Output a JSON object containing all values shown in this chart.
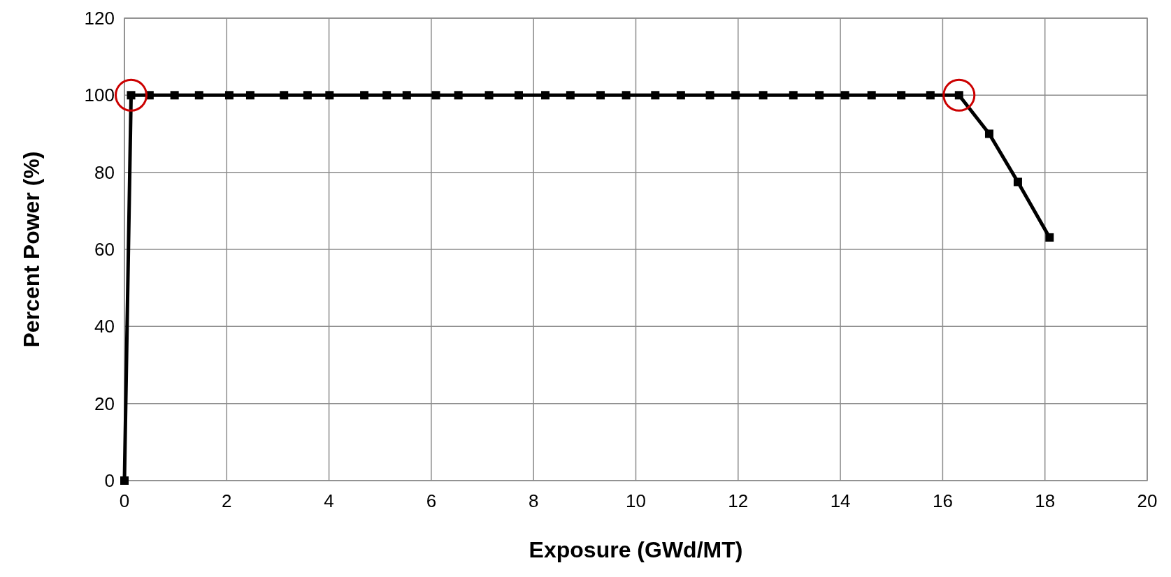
{
  "chart_data": {
    "type": "line",
    "xlabel": "Exposure (GWd/MT)",
    "ylabel": "Percent Power (%)",
    "x": [
      0,
      0.13,
      0.49,
      0.98,
      1.46,
      2.05,
      2.46,
      3.12,
      3.58,
      4.01,
      4.69,
      5.13,
      5.52,
      6.09,
      6.53,
      7.13,
      7.71,
      8.23,
      8.72,
      9.31,
      9.81,
      10.38,
      10.88,
      11.45,
      11.95,
      12.49,
      13.08,
      13.59,
      14.09,
      14.61,
      15.19,
      15.76,
      16.32,
      16.91,
      17.47,
      18.09
    ],
    "series": [
      {
        "color": "#000000",
        "values": [
          0,
          100,
          100,
          100,
          100,
          100,
          100,
          100,
          100,
          100,
          100,
          100,
          100,
          100,
          100,
          100,
          100,
          100,
          100,
          100,
          100,
          100,
          100,
          100,
          100,
          100,
          100,
          100,
          100,
          100,
          100,
          100,
          100,
          90,
          77.5,
          63.1
        ]
      }
    ],
    "xlim": [
      0,
      20
    ],
    "xticks": [
      0,
      2,
      4,
      6,
      8,
      10,
      12,
      14,
      16,
      18,
      20
    ],
    "ylim": [
      0,
      120
    ],
    "yticks": [
      0,
      20,
      40,
      60,
      80,
      100,
      120
    ],
    "grid": true,
    "marker": "square",
    "line_style": "solid"
  }
}
